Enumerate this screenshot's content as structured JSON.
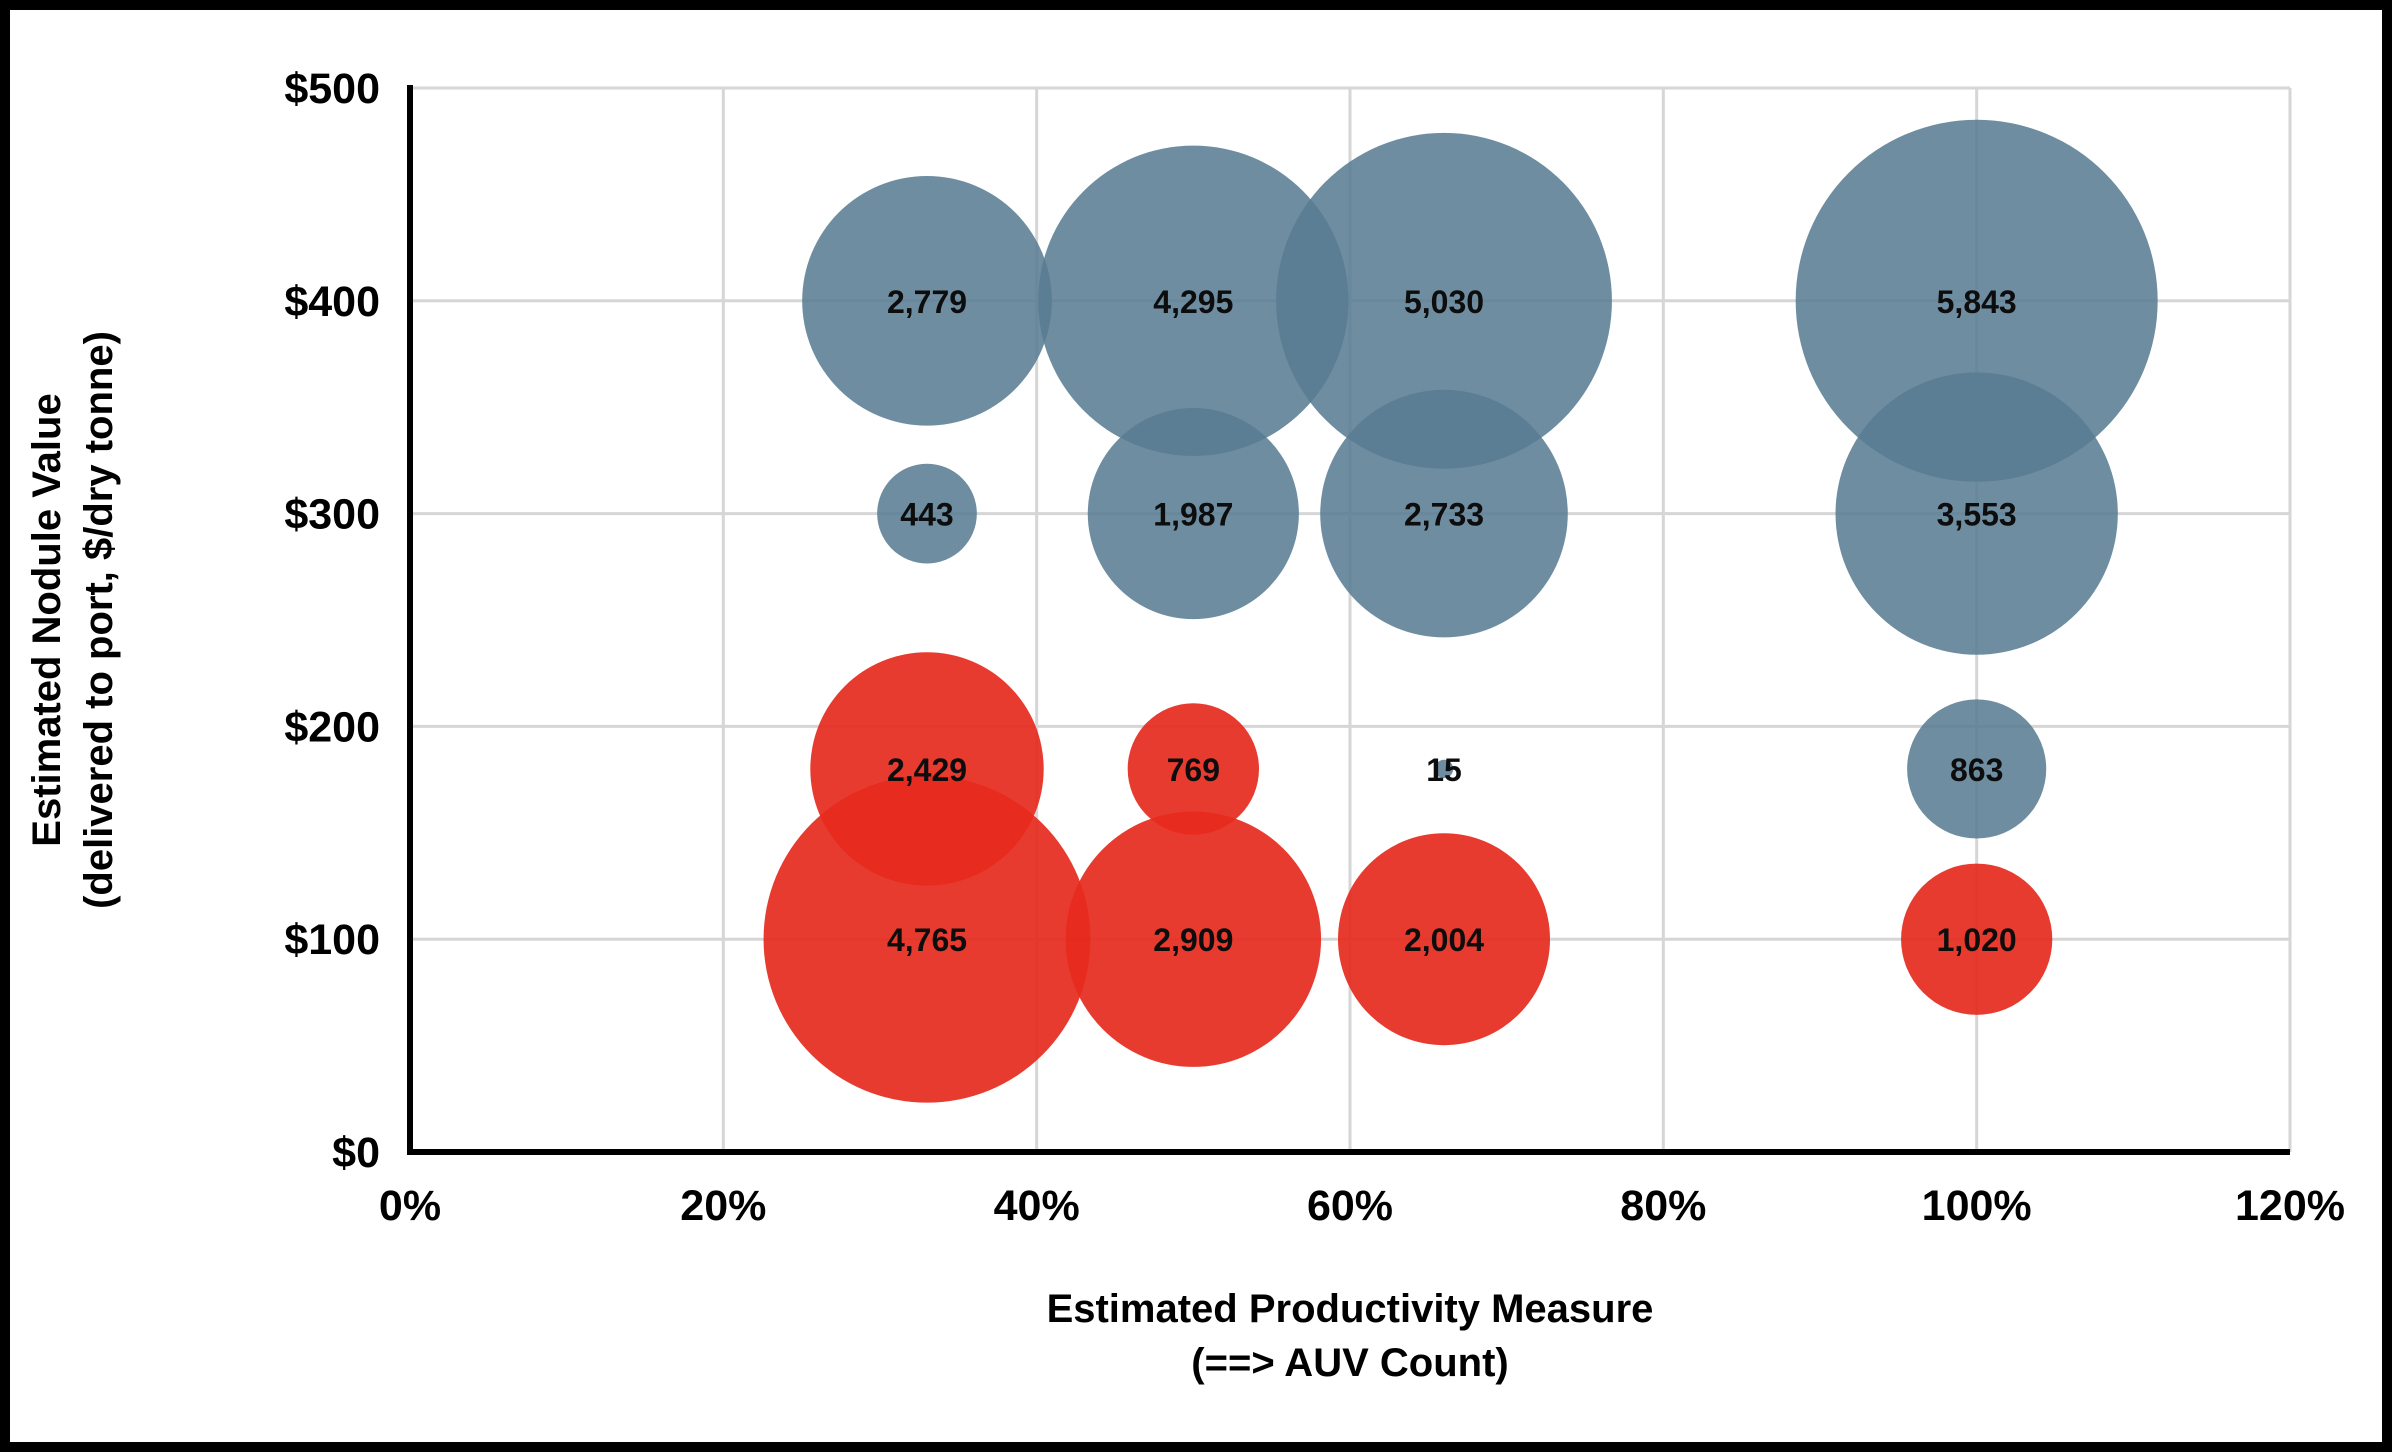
{
  "chart_data": {
    "type": "scatter",
    "subtype": "bubble",
    "xlabel_line1": "Estimated Productivity Measure",
    "xlabel_line2": "(==> AUV Count)",
    "ylabel_line1": "Estimated Nodule Value",
    "ylabel_line2": "(delivered to port, $/dry tonne)",
    "xlim": [
      0,
      120
    ],
    "ylim": [
      0,
      500
    ],
    "x_ticks": [
      "0%",
      "20%",
      "40%",
      "60%",
      "80%",
      "100%",
      "120%"
    ],
    "x_tick_values": [
      0,
      20,
      40,
      60,
      80,
      100,
      120
    ],
    "y_ticks": [
      "$0",
      "$100",
      "$200",
      "$300",
      "$400",
      "$500"
    ],
    "y_tick_values": [
      0,
      100,
      200,
      300,
      400,
      500
    ],
    "grid": true,
    "gridline_color": "#d6d6d6",
    "axis_color": "#000000",
    "frame_color": "#000000",
    "bubble_scale": {
      "max_value": 5843,
      "max_radius_px": 181
    },
    "series": [
      {
        "name": "blue-group",
        "color": "#587C92",
        "opacity": 0.87,
        "points": [
          {
            "x": 33,
            "y": 400,
            "value": 2779,
            "label": "2,779"
          },
          {
            "x": 50,
            "y": 400,
            "value": 4295,
            "label": "4,295"
          },
          {
            "x": 66,
            "y": 400,
            "value": 5030,
            "label": "5,030"
          },
          {
            "x": 100,
            "y": 400,
            "value": 5843,
            "label": "5,843"
          },
          {
            "x": 33,
            "y": 300,
            "value": 443,
            "label": "443"
          },
          {
            "x": 50,
            "y": 300,
            "value": 1987,
            "label": "1,987"
          },
          {
            "x": 66,
            "y": 300,
            "value": 2733,
            "label": "2,733"
          },
          {
            "x": 100,
            "y": 300,
            "value": 3553,
            "label": "3,553"
          },
          {
            "x": 66,
            "y": 180,
            "value": 15,
            "label": "15"
          },
          {
            "x": 100,
            "y": 180,
            "value": 863,
            "label": "863"
          }
        ]
      },
      {
        "name": "red-group",
        "color": "#E62A1D",
        "opacity": 0.92,
        "points": [
          {
            "x": 33,
            "y": 180,
            "value": 2429,
            "label": "2,429"
          },
          {
            "x": 50,
            "y": 180,
            "value": 769,
            "label": "769"
          },
          {
            "x": 33,
            "y": 100,
            "value": 4765,
            "label": "4,765"
          },
          {
            "x": 50,
            "y": 100,
            "value": 2909,
            "label": "2,909"
          },
          {
            "x": 66,
            "y": 100,
            "value": 2004,
            "label": "2,004"
          },
          {
            "x": 100,
            "y": 100,
            "value": 1020,
            "label": "1,020"
          }
        ]
      }
    ]
  }
}
